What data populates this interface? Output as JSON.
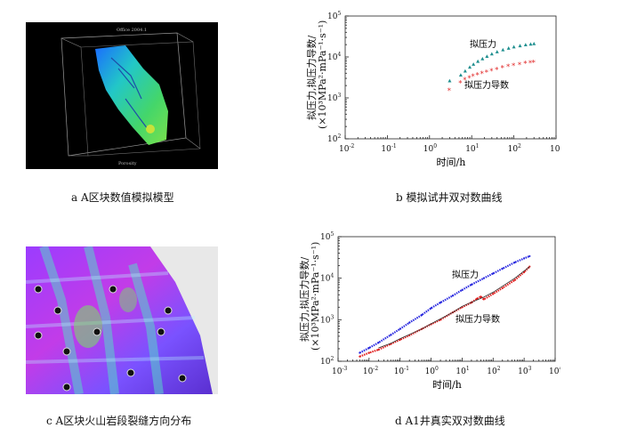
{
  "panels": {
    "a": {
      "caption": "a A区块数值模拟模型",
      "title_text": "Office 2004.1",
      "axis_text": "Porosity"
    },
    "b": {
      "caption": "b 模拟试井双对数曲线"
    },
    "c": {
      "caption": "c A区块火山岩段裂缝方向分布"
    },
    "d": {
      "caption": "d A1井真实双对数曲线"
    }
  },
  "chart_data": [
    {
      "id": "b",
      "type": "scatter",
      "title": "",
      "xlabel": "时间/h",
      "ylabel_line1": "拟压力,拟压力导数/",
      "ylabel_line2": "(×10³MPa²·mPa⁻¹·s⁻¹)",
      "x_scale": "log",
      "y_scale": "log",
      "xlim": [
        0.01,
        1000
      ],
      "ylim": [
        100,
        100000
      ],
      "x_ticks": [
        {
          "v": 0.01,
          "b": "10",
          "e": "-2"
        },
        {
          "v": 0.1,
          "b": "10",
          "e": "-1"
        },
        {
          "v": 1,
          "b": "10",
          "e": "0"
        },
        {
          "v": 10,
          "b": "10",
          "e": "1"
        },
        {
          "v": 100,
          "b": "10",
          "e": "2"
        },
        {
          "v": 1000,
          "b": "10",
          "e": "3"
        }
      ],
      "y_ticks": [
        {
          "v": 100,
          "b": "10",
          "e": "2"
        },
        {
          "v": 1000,
          "b": "10",
          "e": "3"
        },
        {
          "v": 10000,
          "b": "10",
          "e": "4"
        },
        {
          "v": 100000,
          "b": "10",
          "e": "5"
        }
      ],
      "series": [
        {
          "name": "拟压力",
          "color": "#1f8f8f",
          "marker": "triangle",
          "x": [
            3,
            5.5,
            7,
            9,
            11,
            14,
            18,
            23,
            30,
            40,
            55,
            75,
            100,
            140,
            190,
            250,
            300
          ],
          "y": [
            2600,
            3600,
            4500,
            5600,
            6600,
            7800,
            9000,
            10300,
            11800,
            13300,
            14900,
            16300,
            17500,
            18700,
            19700,
            20500,
            21000
          ]
        },
        {
          "name": "拟压力导数",
          "color": "#e02020",
          "marker": "star",
          "x": [
            3,
            5.5,
            7,
            9,
            11,
            14,
            18,
            23,
            30,
            40,
            55,
            75,
            100,
            140,
            190,
            250,
            300
          ],
          "y": [
            1500,
            2300,
            2700,
            3000,
            3300,
            3600,
            3900,
            4200,
            4500,
            4900,
            5300,
            5700,
            6000,
            6400,
            6800,
            7100,
            7300
          ]
        }
      ],
      "annotations": [
        {
          "text": "拟压力"
        },
        {
          "text": "拟压力导数"
        }
      ]
    },
    {
      "id": "d",
      "type": "line",
      "title": "",
      "xlabel": "时间/h",
      "ylabel_line1": "拟压力,拟压力导数/",
      "ylabel_line2": "(×10³MPa²·mPa⁻¹·s⁻¹)",
      "x_scale": "log",
      "y_scale": "log",
      "xlim": [
        0.001,
        10000
      ],
      "ylim": [
        100,
        100000
      ],
      "x_ticks": [
        {
          "v": 0.001,
          "b": "10",
          "e": "-3"
        },
        {
          "v": 0.01,
          "b": "10",
          "e": "-2"
        },
        {
          "v": 0.1,
          "b": "10",
          "e": "-1"
        },
        {
          "v": 1,
          "b": "10",
          "e": "0"
        },
        {
          "v": 10,
          "b": "10",
          "e": "1"
        },
        {
          "v": 100,
          "b": "10",
          "e": "2"
        },
        {
          "v": 1000,
          "b": "10",
          "e": "3"
        },
        {
          "v": 10000,
          "b": "10",
          "e": "4"
        }
      ],
      "y_ticks": [
        {
          "v": 100,
          "b": "10",
          "e": "2"
        },
        {
          "v": 1000,
          "b": "10",
          "e": "3"
        },
        {
          "v": 10000,
          "b": "10",
          "e": "4"
        },
        {
          "v": 100000,
          "b": "10",
          "e": "5"
        }
      ],
      "series": [
        {
          "name": "拟压力",
          "color": "#2a2adf",
          "marker": "dot",
          "x": [
            0.005,
            0.01,
            0.02,
            0.05,
            0.1,
            0.2,
            0.5,
            1,
            2,
            5,
            10,
            20,
            50,
            100,
            200,
            500,
            1000,
            1500
          ],
          "y": [
            160,
            210,
            280,
            430,
            600,
            850,
            1300,
            1900,
            2600,
            3800,
            5200,
            7000,
            10000,
            13000,
            17000,
            24000,
            30000,
            34000
          ]
        },
        {
          "name": "拟压力导数",
          "color": "#e02020",
          "marker": "dot",
          "x": [
            0.005,
            0.01,
            0.02,
            0.05,
            0.1,
            0.2,
            0.5,
            1,
            2,
            5,
            10,
            20,
            30,
            40,
            50,
            100,
            200,
            500,
            1000,
            1500
          ],
          "y": [
            130,
            160,
            190,
            260,
            330,
            420,
            600,
            780,
            1000,
            1500,
            2000,
            2600,
            3200,
            3600,
            3100,
            4200,
            5800,
            9000,
            14000,
            19000
          ]
        },
        {
          "name": "",
          "color": "#333333",
          "marker": "none",
          "x": [
            0.02,
            0.05,
            0.1,
            0.5,
            1,
            5,
            10,
            30,
            50,
            100,
            500,
            1500
          ],
          "y": [
            210,
            270,
            350,
            600,
            800,
            1500,
            2100,
            3000,
            3500,
            4600,
            10000,
            19000
          ]
        }
      ],
      "annotations": [
        {
          "text": "拟压力"
        },
        {
          "text": "拟压力导数"
        }
      ]
    }
  ]
}
